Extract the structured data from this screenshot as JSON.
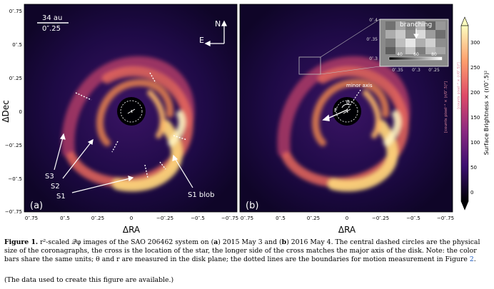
{
  "figure": {
    "panel_a": {
      "tag": "(a)",
      "scale_bar_top": "34 au",
      "scale_bar_bottom": "0″.25",
      "compass_north": "N",
      "compass_east": "E",
      "labels": {
        "s3": "S3",
        "s2": "S2",
        "s1": "S1",
        "s1_blob": "S1 blob"
      },
      "y_ticks": [
        "0″.75",
        "0″.5",
        "0″.25",
        "0",
        "−0″.25",
        "−0″.5",
        "−0″.75"
      ],
      "x_ticks": [
        "0″.75",
        "0″.5",
        "0″.25",
        "0",
        "−0″.25",
        "−0″.5",
        "−0″.75"
      ],
      "y_title": "ΔDec",
      "x_title": "ΔRA"
    },
    "panel_b": {
      "tag": "(b)",
      "minor_axis_label": "minor axis",
      "r_label": "r",
      "theta_label": "θ",
      "x_ticks": [
        "0″.75",
        "0″.5",
        "0″.25",
        "0",
        "−0″.25",
        "−0″.5",
        "−0″.75"
      ],
      "x_title": "ΔRA",
      "inset": {
        "title": "branching",
        "y_ticks": [
          "0″.4",
          "0″.35",
          "0″.3"
        ],
        "x_ticks": [
          "0″.35",
          "0″.3",
          "0″.25"
        ],
        "cbar_ticks": [
          "40",
          "60",
          "80"
        ],
        "cbar_unit": "[counts pixel⁻¹ × (r/0″.5)²]"
      }
    },
    "colorbar": {
      "ticks": [
        "0",
        "50",
        "100",
        "150",
        "200",
        "250",
        "300"
      ],
      "label": "Surface Brightness × (r/0″.5)²",
      "unit": "[counts pixel⁻¹ × (r/0″.5)²]",
      "colors": [
        "#000004",
        "#3b0f70",
        "#8c2981",
        "#de4968",
        "#fe9f6d",
        "#fcfdbf"
      ]
    }
  },
  "caption": {
    "label": "Figure 1.",
    "part1": " r²-scaled 𝒬φ images of the SAO 206462 system on (",
    "a": "a",
    "part2": ") 2015 May 3 and (",
    "b": "b",
    "part3": ") 2016 May 4. The central dashed circles are the physical size of the coronagraphs, the cross is the location of the star, the longer side of the cross matches the major axis of the disk. Note: the color bars share the same units; θ and r are measured in the disk plane; the dotted lines are the boundaries for motion measurement in Figure ",
    "ref": "2",
    "part4": "."
  },
  "data_note": "(The data used to create this figure are available.)"
}
